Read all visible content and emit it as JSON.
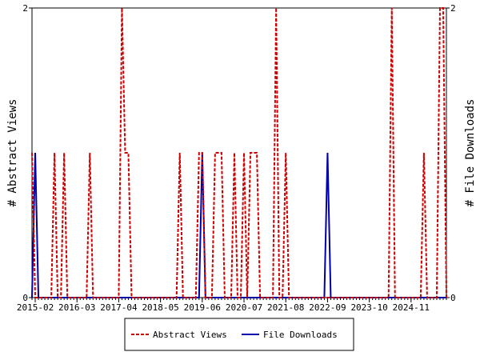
{
  "chart_data": {
    "type": "line",
    "ylabel_left": "# Abstract Views",
    "ylabel_right": "# File Downloads",
    "ylim": [
      0,
      2
    ],
    "y_ticks": [
      "0",
      "2"
    ],
    "x_tick_labels": [
      "2015-02",
      "2016-03",
      "2017-04",
      "2018-05",
      "2019-06",
      "2020-07",
      "2021-08",
      "2022-09",
      "2023-10",
      "2024-11"
    ],
    "x_start": "2015-01",
    "x_end": "2025-10",
    "grid": false,
    "legend_position": "bottom",
    "series": [
      {
        "name": "Abstract Views",
        "color": "#cc0000",
        "style": "dashed",
        "points": [
          [
            "2015-01",
            1
          ],
          [
            "2015-02",
            0
          ],
          [
            "2015-07",
            0
          ],
          [
            "2015-08",
            1
          ],
          [
            "2015-09",
            0
          ],
          [
            "2015-10",
            0
          ],
          [
            "2015-11",
            1
          ],
          [
            "2015-12",
            0
          ],
          [
            "2016-06",
            0
          ],
          [
            "2016-07",
            1
          ],
          [
            "2016-08",
            0
          ],
          [
            "2017-04",
            0
          ],
          [
            "2017-05",
            2
          ],
          [
            "2017-06",
            1
          ],
          [
            "2017-07",
            1
          ],
          [
            "2017-08",
            0
          ],
          [
            "2018-10",
            0
          ],
          [
            "2018-11",
            1
          ],
          [
            "2018-12",
            0
          ],
          [
            "2019-04",
            0
          ],
          [
            "2019-05",
            1
          ],
          [
            "2019-06",
            1
          ],
          [
            "2019-07",
            0
          ],
          [
            "2019-09",
            0
          ],
          [
            "2019-10",
            1
          ],
          [
            "2019-11",
            1
          ],
          [
            "2019-12",
            1
          ],
          [
            "2020-01",
            0
          ],
          [
            "2020-03",
            0
          ],
          [
            "2020-04",
            1
          ],
          [
            "2020-05",
            0
          ],
          [
            "2020-06",
            0
          ],
          [
            "2020-07",
            1
          ],
          [
            "2020-08",
            0
          ],
          [
            "2020-09",
            1
          ],
          [
            "2020-10",
            1
          ],
          [
            "2020-11",
            1
          ],
          [
            "2020-12",
            0
          ],
          [
            "2021-04",
            0
          ],
          [
            "2021-05",
            2
          ],
          [
            "2021-06",
            0
          ],
          [
            "2021-07",
            0
          ],
          [
            "2021-08",
            1
          ],
          [
            "2021-09",
            0
          ],
          [
            "2024-04",
            0
          ],
          [
            "2024-05",
            2
          ],
          [
            "2024-06",
            0
          ],
          [
            "2025-02",
            0
          ],
          [
            "2025-03",
            1
          ],
          [
            "2025-04",
            0
          ],
          [
            "2025-07",
            0
          ],
          [
            "2025-08",
            2
          ],
          [
            "2025-09",
            2
          ]
        ]
      },
      {
        "name": "File Downloads",
        "color": "#0000aa",
        "style": "solid",
        "points": [
          [
            "2015-01",
            0
          ],
          [
            "2015-02",
            1
          ],
          [
            "2015-03",
            0
          ],
          [
            "2019-05",
            0
          ],
          [
            "2019-06",
            1
          ],
          [
            "2019-07",
            0
          ],
          [
            "2022-08",
            0
          ],
          [
            "2022-09",
            1
          ],
          [
            "2022-10",
            0
          ]
        ]
      }
    ]
  }
}
